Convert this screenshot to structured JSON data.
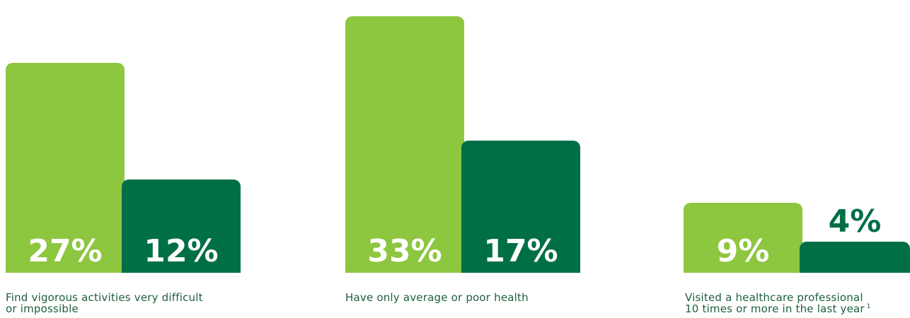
{
  "colors": {
    "light_bar": "#8dc63f",
    "dark_bar": "#006f46",
    "caption_text": "#1e5e3c",
    "inside_label": "#ffffff"
  },
  "chart_data": [
    {
      "type": "bar",
      "caption": [
        "Find vigorous activities very difficult",
        "or impossible"
      ],
      "values": [
        27,
        12
      ],
      "value_labels": [
        "27%",
        "12%"
      ]
    },
    {
      "type": "bar",
      "caption": [
        "Have only average or poor health"
      ],
      "values": [
        33,
        17
      ],
      "value_labels": [
        "33%",
        "17%"
      ]
    },
    {
      "type": "bar",
      "caption": [
        "Visited a healthcare professional",
        "10 times or more in the last year"
      ],
      "footnote": "1",
      "values": [
        9,
        4
      ],
      "value_labels": [
        "9%",
        "4%"
      ]
    }
  ]
}
